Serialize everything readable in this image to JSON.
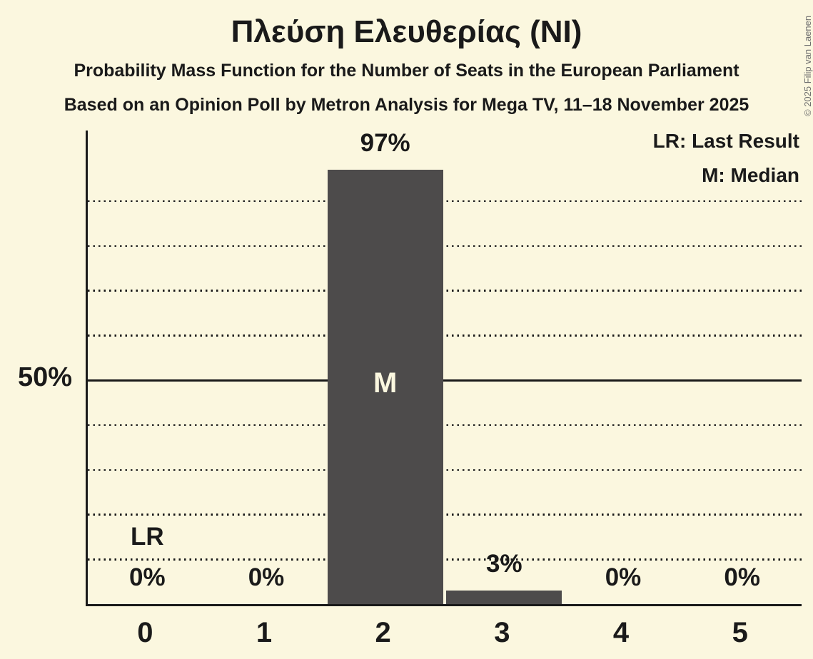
{
  "title": "Πλεύση Ελευθερίας (NI)",
  "subtitle1": "Probability Mass Function for the Number of Seats in the European Parliament",
  "subtitle2": "Based on an Opinion Poll by Metron Analysis for Mega TV, 11–18 November 2025",
  "legend": {
    "lr": "LR: Last Result",
    "m": "M: Median"
  },
  "y_axis": {
    "label_50": "50%"
  },
  "copyright": "© 2025 Filip van Laenen",
  "colors": {
    "background": "#FBF7DF",
    "bar": "#4D4B4B",
    "text": "#1A1A1A",
    "label_inside_bar": "#FBF7DF",
    "copyright_text": "#6E6E6E"
  },
  "chart_data": {
    "type": "bar",
    "title": "Πλεύση Ελευθερίας (NI)",
    "categories": [
      "0",
      "1",
      "2",
      "3",
      "4",
      "5"
    ],
    "values": [
      0,
      0,
      97,
      3,
      0,
      0
    ],
    "value_labels": [
      "0%",
      "0%",
      "97%",
      "3%",
      "0%",
      "0%"
    ],
    "xlabel": "",
    "ylabel": "",
    "ylim": [
      0,
      105.7
    ],
    "solid_line_pct": 50,
    "solid_line_label": "50%",
    "gridlines_pct": [
      10,
      20,
      30,
      40,
      60,
      70,
      80,
      90
    ],
    "grid_style": "horizontal dotted",
    "legend_position": "top-right",
    "markers": [
      {
        "symbol": "LR",
        "meaning": "Last Result",
        "category": "0",
        "placement": "above-bar"
      },
      {
        "symbol": "M",
        "meaning": "Median",
        "category": "2",
        "placement": "inside-bar"
      }
    ]
  }
}
